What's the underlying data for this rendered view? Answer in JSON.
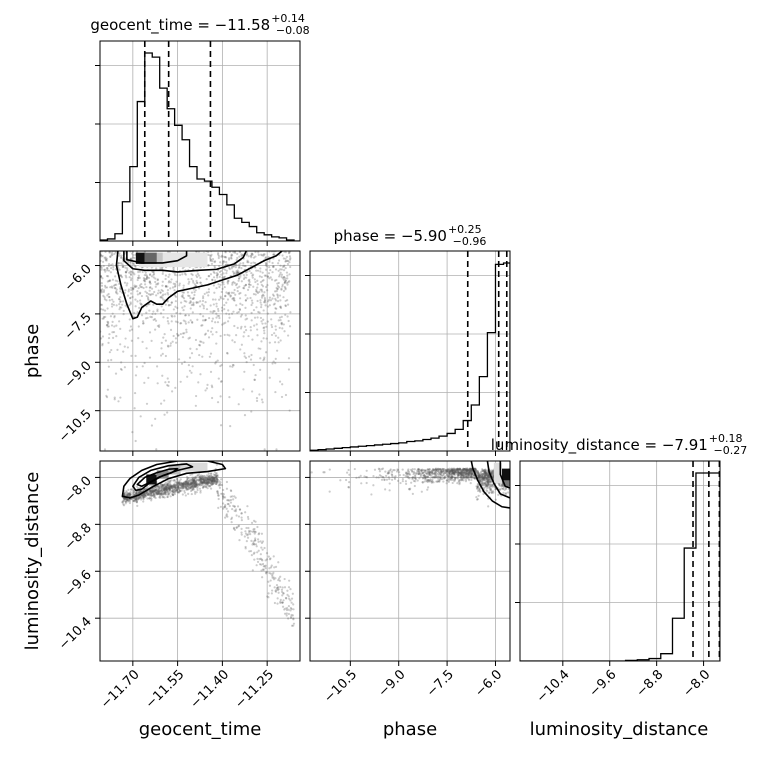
{
  "chart_data": {
    "type": "corner",
    "parameters": [
      "geocent_time",
      "phase",
      "luminosity_distance"
    ],
    "axes": {
      "geocent_time": {
        "range": [
          -11.81,
          -11.14
        ],
        "ticks": [
          -11.7,
          -11.55,
          -11.4,
          -11.25
        ],
        "tick_labels": [
          "−11.70",
          "−11.55",
          "−11.40",
          "−11.25"
        ]
      },
      "phase": {
        "range": [
          -11.75,
          -5.55
        ],
        "ticks": [
          -10.5,
          -9.0,
          -7.5,
          -6.0
        ],
        "tick_labels": [
          "−10.5",
          "−9.0",
          "−7.5",
          "−6.0"
        ]
      },
      "luminosity_distance": {
        "range": [
          -11.13,
          -7.72
        ],
        "ticks": [
          -10.4,
          -9.6,
          -8.8,
          -8.0
        ],
        "tick_labels": [
          "−10.4",
          "−9.6",
          "−8.8",
          "−8.0"
        ]
      }
    },
    "titles": [
      {
        "name": "geocent_time",
        "median": "−11.58",
        "plus": "+0.14",
        "minus": "−0.08"
      },
      {
        "name": "phase",
        "median": "−5.90",
        "plus": "+0.25",
        "minus": "−0.96"
      },
      {
        "name": "luminosity_distance",
        "median": "−7.91",
        "plus": "+0.18",
        "minus": "−0.27"
      }
    ],
    "quantiles": {
      "geocent_time": [
        -11.66,
        -11.58,
        -11.44
      ],
      "phase": [
        -6.86,
        -5.9,
        -5.65
      ],
      "luminosity_distance": [
        -8.18,
        -7.91,
        -7.73
      ]
    },
    "histograms": {
      "geocent_time": {
        "edges": [
          -11.81,
          -11.785,
          -11.76,
          -11.735,
          -11.71,
          -11.685,
          -11.66,
          -11.635,
          -11.61,
          -11.585,
          -11.56,
          -11.535,
          -11.51,
          -11.485,
          -11.46,
          -11.435,
          -11.41,
          -11.385,
          -11.36,
          -11.335,
          -11.31,
          -11.285,
          -11.26,
          -11.235,
          -11.21,
          -11.185,
          -11.16,
          -11.14
        ],
        "counts": [
          1,
          2,
          7,
          38,
          72,
          135,
          182,
          178,
          148,
          128,
          112,
          98,
          72,
          60,
          58,
          52,
          45,
          35,
          22,
          18,
          14,
          8,
          6,
          4,
          3,
          1,
          0
        ]
      },
      "phase": {
        "edges": [
          -11.75,
          -11.5,
          -11.25,
          -11.0,
          -10.75,
          -10.5,
          -10.25,
          -10.0,
          -9.75,
          -9.5,
          -9.25,
          -9.0,
          -8.75,
          -8.5,
          -8.25,
          -8.0,
          -7.75,
          -7.5,
          -7.25,
          -7.0,
          -6.75,
          -6.5,
          -6.25,
          -6.0,
          -5.75,
          -5.55
        ],
        "counts": [
          1,
          2,
          3,
          4,
          5,
          6,
          7,
          8,
          9,
          10,
          11,
          12,
          14,
          15,
          17,
          19,
          22,
          26,
          32,
          45,
          68,
          110,
          175,
          276,
          278
        ]
      },
      "luminosity_distance": {
        "edges": [
          -11.13,
          -10.93,
          -10.73,
          -10.53,
          -10.33,
          -10.13,
          -9.93,
          -9.73,
          -9.53,
          -9.33,
          -9.13,
          -8.93,
          -8.73,
          -8.53,
          -8.33,
          -8.13,
          -7.93,
          -7.72
        ],
        "counts": [
          0,
          0,
          0,
          0,
          0,
          0,
          0,
          0,
          0,
          1,
          2,
          4,
          12,
          70,
          185,
          308,
          308
        ]
      }
    },
    "grid": true
  }
}
